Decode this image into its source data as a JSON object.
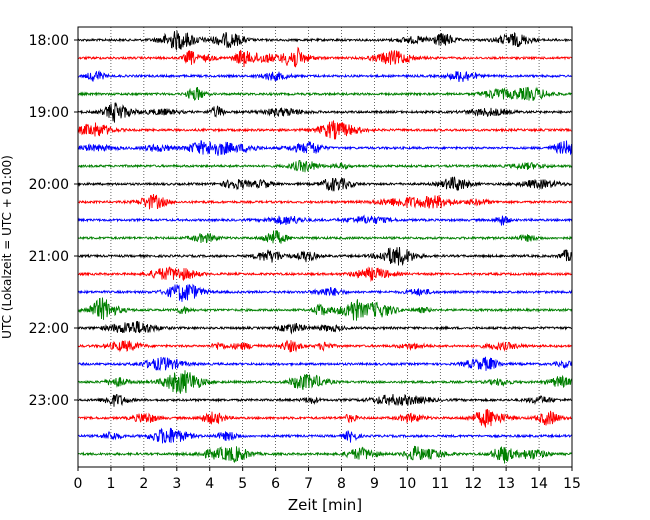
{
  "chart_data": {
    "type": "line",
    "title": "",
    "xlabel": "Zeit  [min]",
    "ylabel": "UTC (Lokalzeit = UTC + 01:00)",
    "xlim": [
      0,
      15
    ],
    "x_ticks": [
      "0",
      "1",
      "2",
      "3",
      "4",
      "5",
      "6",
      "7",
      "8",
      "9",
      "10",
      "11",
      "12",
      "13",
      "14",
      "15"
    ],
    "y_ticks": [
      "18:00",
      "19:00",
      "20:00",
      "21:00",
      "22:00",
      "23:00"
    ],
    "y_tick_rows": [
      0,
      4,
      8,
      12,
      16,
      20
    ],
    "row_minutes": 15,
    "grid": "vertical dotted",
    "trace_colors": [
      "#000000",
      "#ff0000",
      "#0000ff",
      "#008000"
    ],
    "series": [
      {
        "start": "18:00",
        "color": "#000000"
      },
      {
        "start": "18:15",
        "color": "#ff0000"
      },
      {
        "start": "18:30",
        "color": "#0000ff"
      },
      {
        "start": "18:45",
        "color": "#008000"
      },
      {
        "start": "19:00",
        "color": "#000000"
      },
      {
        "start": "19:15",
        "color": "#ff0000"
      },
      {
        "start": "19:30",
        "color": "#0000ff"
      },
      {
        "start": "19:45",
        "color": "#008000"
      },
      {
        "start": "20:00",
        "color": "#000000"
      },
      {
        "start": "20:15",
        "color": "#ff0000"
      },
      {
        "start": "20:30",
        "color": "#0000ff"
      },
      {
        "start": "20:45",
        "color": "#008000"
      },
      {
        "start": "21:00",
        "color": "#000000"
      },
      {
        "start": "21:15",
        "color": "#ff0000"
      },
      {
        "start": "21:30",
        "color": "#0000ff"
      },
      {
        "start": "21:45",
        "color": "#008000"
      },
      {
        "start": "22:00",
        "color": "#000000"
      },
      {
        "start": "22:15",
        "color": "#ff0000"
      },
      {
        "start": "22:30",
        "color": "#0000ff"
      },
      {
        "start": "22:45",
        "color": "#008000"
      },
      {
        "start": "23:00",
        "color": "#000000"
      },
      {
        "start": "23:15",
        "color": "#ff0000"
      },
      {
        "start": "23:30",
        "color": "#0000ff"
      },
      {
        "start": "23:45",
        "color": "#008000"
      }
    ]
  }
}
